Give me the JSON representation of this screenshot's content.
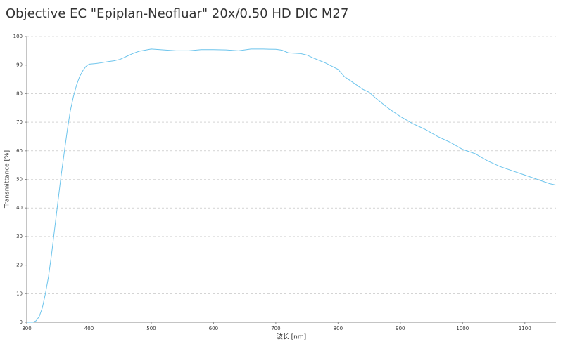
{
  "chart_data": {
    "type": "line",
    "title": "Objective EC \"Epiplan-Neofluar\" 20x/0.50 HD DIC M27",
    "x_label": "波长 [nm]",
    "y_label": "Transmittance [%]",
    "x": [
      300,
      310,
      315,
      320,
      325,
      330,
      335,
      340,
      345,
      350,
      355,
      360,
      365,
      370,
      375,
      380,
      385,
      390,
      395,
      400,
      410,
      420,
      430,
      440,
      450,
      460,
      470,
      480,
      490,
      500,
      520,
      540,
      560,
      580,
      600,
      620,
      640,
      660,
      680,
      700,
      710,
      720,
      740,
      750,
      760,
      780,
      800,
      810,
      820,
      840,
      850,
      860,
      880,
      900,
      920,
      940,
      960,
      980,
      1000,
      1020,
      1040,
      1060,
      1080,
      1100,
      1120,
      1140,
      1150
    ],
    "values": [
      0,
      0,
      0.5,
      2,
      5,
      10,
      16,
      24,
      33,
      42,
      51,
      59,
      67,
      74,
      79,
      83,
      86,
      88,
      89.5,
      90.3,
      90.5,
      90.8,
      91.2,
      91.5,
      92,
      93,
      94,
      94.8,
      95.2,
      95.6,
      95.3,
      95,
      95,
      95.4,
      95.4,
      95.3,
      95,
      95.6,
      95.6,
      95.5,
      95.2,
      94.3,
      94,
      93.5,
      92.5,
      90.7,
      88.5,
      86,
      84.5,
      81.5,
      80.5,
      78.5,
      75,
      72,
      69.5,
      67.5,
      65,
      63,
      60.5,
      59,
      56.5,
      54.5,
      53,
      51.5,
      50,
      48.5,
      48
    ],
    "color": "#6cc4ec",
    "xlim": [
      300,
      1150
    ],
    "xticks": [
      300,
      400,
      500,
      600,
      700,
      800,
      900,
      1000,
      1100
    ],
    "ylim": [
      0,
      100
    ],
    "yticks": [
      0,
      10,
      20,
      30,
      40,
      50,
      60,
      70,
      80,
      90,
      100
    ],
    "grid": true
  }
}
